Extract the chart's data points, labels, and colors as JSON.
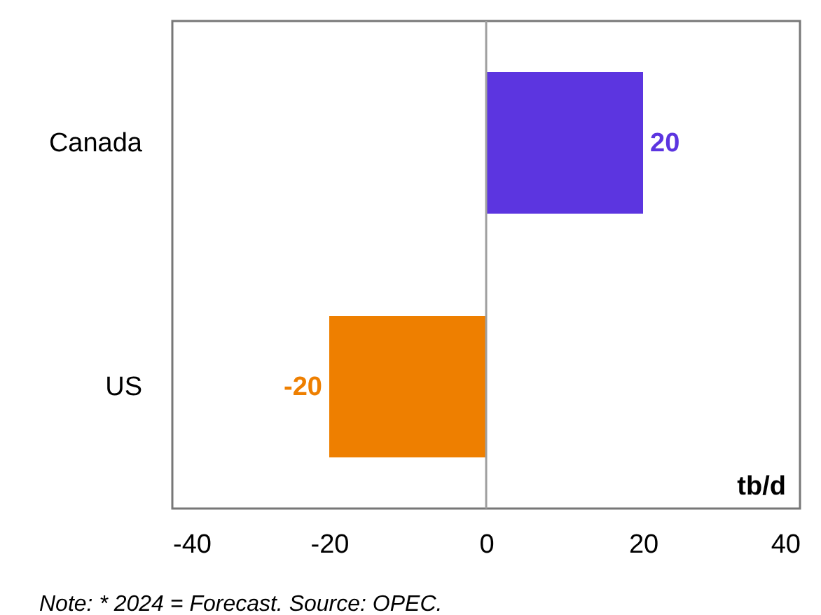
{
  "chart_data": {
    "type": "bar",
    "orientation": "horizontal",
    "categories": [
      "Canada",
      "US"
    ],
    "values": [
      20,
      -20
    ],
    "colors": [
      "#5c35e0",
      "#ee7f00"
    ],
    "xlim": [
      -40,
      40
    ],
    "xticks": [
      -40,
      -20,
      0,
      20,
      40
    ],
    "xlabel": "tb/d",
    "data_labels": true,
    "grid": false,
    "ref_lines": [
      {
        "axis": "x",
        "value": 0,
        "color": "#a0a0a0"
      }
    ],
    "annotations": [
      "Note: * 2024 = Forecast. Source: OPEC."
    ]
  }
}
